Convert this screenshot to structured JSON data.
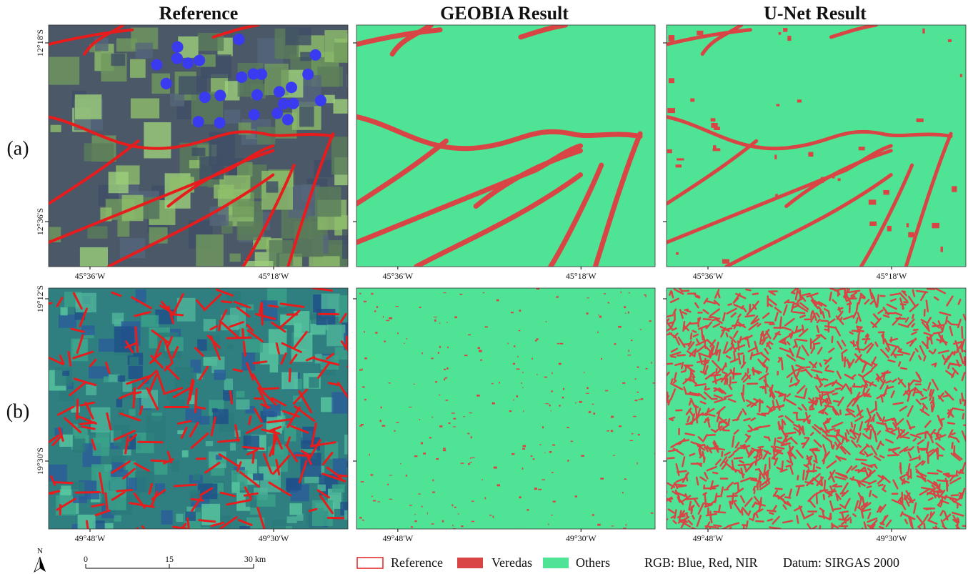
{
  "columns": [
    "Reference",
    "GEOBIA Result",
    "U-Net Result"
  ],
  "rows": [
    {
      "label": "(a)",
      "lat": [
        "12°18′S",
        "12°36′S"
      ],
      "lon": [
        "45°36′W",
        "45°18′W"
      ]
    },
    {
      "label": "(b)",
      "lat": [
        "19°12′S",
        "19°30′S"
      ],
      "lon": [
        "49°48′W",
        "49°30′W"
      ]
    }
  ],
  "north": "N",
  "scale": [
    "0",
    "15",
    "30 km"
  ],
  "legend": [
    "Reference",
    "Veredas",
    "Others"
  ],
  "notes": [
    "RGB: Blue, Red, NIR",
    "Datum: SIRGAS 2000"
  ]
}
